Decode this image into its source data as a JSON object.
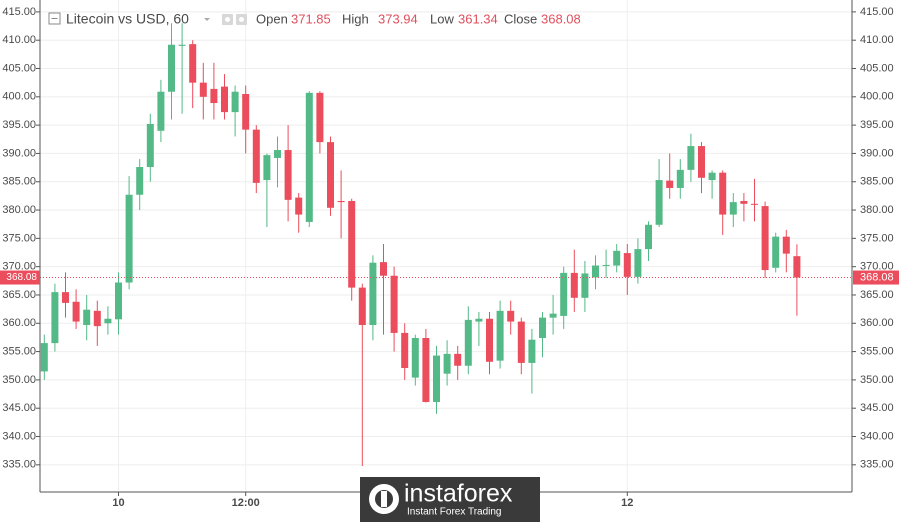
{
  "chart_data": {
    "type": "candlestick",
    "title": "Litecoin vs USD, 60",
    "header_labels": {
      "open": "Open",
      "high": "High",
      "low": "Low",
      "close": "Close"
    },
    "categories": [
      null,
      null,
      null,
      null,
      null,
      null,
      null,
      "10",
      null,
      null,
      null,
      null,
      null,
      null,
      null,
      null,
      null,
      null,
      null,
      "12:00",
      null,
      null,
      null,
      null,
      null,
      null,
      null,
      null,
      null,
      null,
      null,
      null,
      null,
      null,
      null,
      null,
      null,
      null,
      null,
      null,
      null,
      null,
      null,
      null,
      null,
      null,
      null,
      null,
      null,
      null,
      null,
      null,
      null,
      null,
      null,
      "12",
      null,
      null,
      null,
      null,
      null,
      null,
      null,
      null,
      null,
      null,
      null,
      null,
      null,
      null,
      null,
      null
    ],
    "open": [
      351.5,
      356.5,
      365.5,
      363.8,
      359.7,
      362.2,
      360,
      360.7,
      367.2,
      382.7,
      387.6,
      394,
      400.9,
      409,
      409.3,
      402.5,
      401.4,
      401.8,
      397.3,
      400.5,
      394.2,
      385.3,
      389.2,
      390.6,
      382.2,
      377.9,
      400.7,
      392,
      381.6,
      381.6,
      366.3,
      359.7,
      370.8,
      368.4,
      358.3,
      350.4,
      357.4,
      346.1,
      351.1,
      354.6,
      352.5,
      360.3,
      360.8,
      353.4,
      362.2,
      360.3,
      353,
      357.4,
      361,
      361.3,
      368.9,
      364.5,
      368.1,
      370.2,
      370.2,
      372.4,
      368.2,
      373.1,
      377.4,
      385.2,
      383.9,
      387.1,
      391.3,
      385.3,
      386.6,
      379.2,
      381.6,
      381.1,
      380.7,
      369.8,
      375.3,
      371.85
    ],
    "high": [
      358,
      367,
      369,
      366,
      365,
      364,
      363,
      369,
      386,
      389,
      397,
      403,
      413,
      413,
      410,
      406,
      406,
      404,
      402,
      402,
      395,
      390,
      393,
      395,
      383,
      401,
      401,
      393,
      387,
      382,
      367,
      372,
      374,
      370,
      360,
      358,
      359,
      356,
      357,
      356,
      363,
      362,
      362,
      364,
      364,
      361,
      359,
      362,
      365,
      370,
      373,
      371,
      372,
      373,
      374,
      374,
      375,
      378,
      389,
      390,
      389,
      393.5,
      392,
      387,
      387,
      383,
      383,
      385.5,
      381.5,
      376,
      376.5,
      373.94
    ],
    "low": [
      350,
      355,
      361,
      359,
      357,
      356,
      358,
      358,
      366,
      380,
      385,
      392,
      396,
      397,
      398,
      396,
      396,
      396,
      393,
      390,
      383,
      377,
      384,
      378,
      376,
      377,
      390,
      379,
      375,
      364,
      334.8,
      357,
      358,
      355,
      350,
      349,
      346,
      344,
      349,
      350,
      351,
      356,
      351,
      352,
      358,
      351,
      347.6,
      354,
      358,
      359,
      362,
      362,
      366,
      368,
      369,
      365,
      367,
      371,
      377,
      382,
      382,
      385,
      383,
      382,
      375.6,
      377,
      378,
      378,
      368,
      369,
      369,
      361.34
    ],
    "close": [
      356.5,
      365.5,
      363.6,
      360.3,
      362.4,
      359.5,
      360.8,
      367.2,
      382.7,
      387.6,
      395.2,
      400.9,
      409.2,
      409.2,
      402.5,
      400,
      398.9,
      397.3,
      400.9,
      394.2,
      384.8,
      389.7,
      390.6,
      381.8,
      379.2,
      400.7,
      392,
      380.4,
      381.4,
      366.3,
      359.7,
      370.7,
      368.4,
      358.3,
      352.1,
      357.4,
      346.1,
      354.3,
      354.6,
      352.5,
      360.6,
      360.8,
      353.2,
      362.2,
      360.3,
      353,
      357.1,
      361,
      361.7,
      368.9,
      364.5,
      368.8,
      370.2,
      370.3,
      372.8,
      368.2,
      373.1,
      377.4,
      385.3,
      383.9,
      387.1,
      391.3,
      385.7,
      386.6,
      379.2,
      381.4,
      381.1,
      381,
      369.4,
      375.3,
      372.3,
      368.08
    ],
    "up_color": "#53b987",
    "down_color": "#eb4d5c",
    "ylim": [
      330.2,
      417.1
    ],
    "yticks": [
      {
        "value": 335,
        "label": "335.00"
      },
      {
        "value": 340,
        "label": "340.00"
      },
      {
        "value": 345,
        "label": "345.00"
      },
      {
        "value": 350,
        "label": "350.00"
      },
      {
        "value": 355,
        "label": "355.00"
      },
      {
        "value": 360,
        "label": "360.00"
      },
      {
        "value": 365,
        "label": "365.00"
      },
      {
        "value": 370,
        "label": "370.00"
      },
      {
        "value": 375,
        "label": "375.00"
      },
      {
        "value": 380,
        "label": "380.00"
      },
      {
        "value": 385,
        "label": "385.00"
      },
      {
        "value": 390,
        "label": "390.00"
      },
      {
        "value": 395,
        "label": "395.00"
      },
      {
        "value": 400,
        "label": "400.00"
      },
      {
        "value": 405,
        "label": "405.00"
      },
      {
        "value": 410,
        "label": "410.00"
      },
      {
        "value": 415,
        "label": "415.00"
      }
    ],
    "grid": true,
    "watermark": {
      "brand": "instaforex",
      "tagline": "Instant Forex Trading"
    }
  }
}
